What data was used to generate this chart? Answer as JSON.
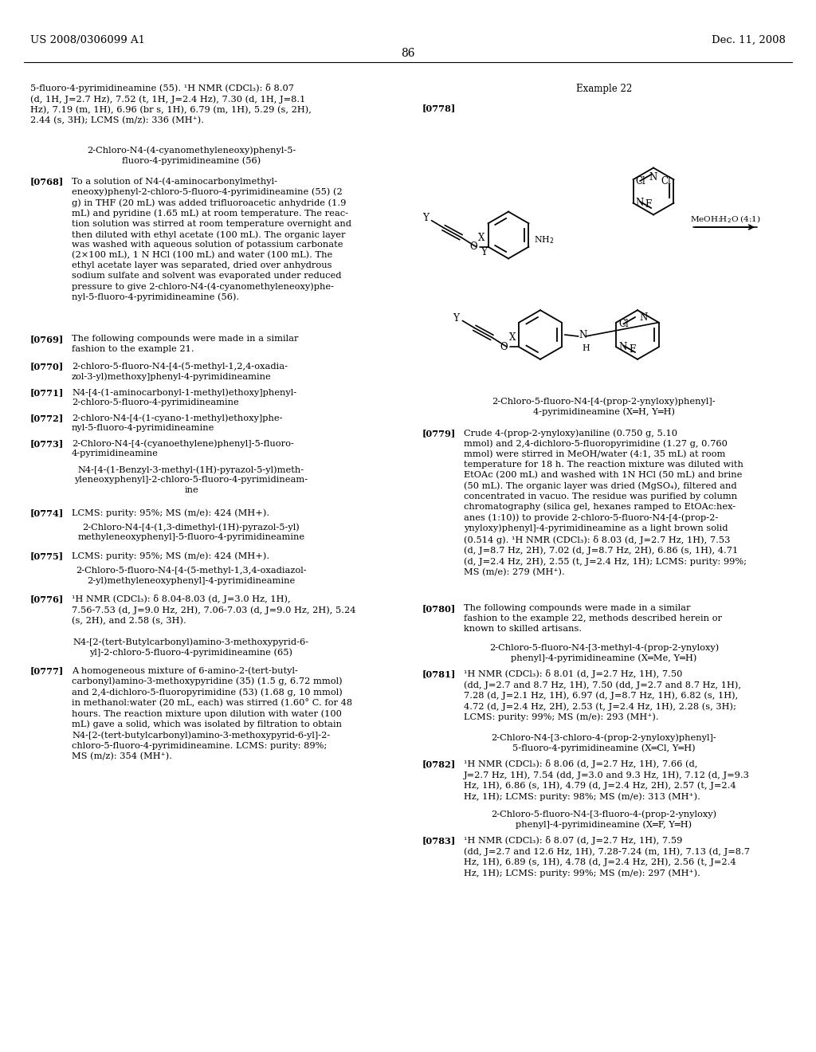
{
  "page_number": "86",
  "header_left": "US 2008/0306099 A1",
  "header_right": "Dec. 11, 2008",
  "background_color": "#ffffff",
  "text_color": "#000000",
  "figsize": [
    10.24,
    13.2
  ],
  "dpi": 100
}
